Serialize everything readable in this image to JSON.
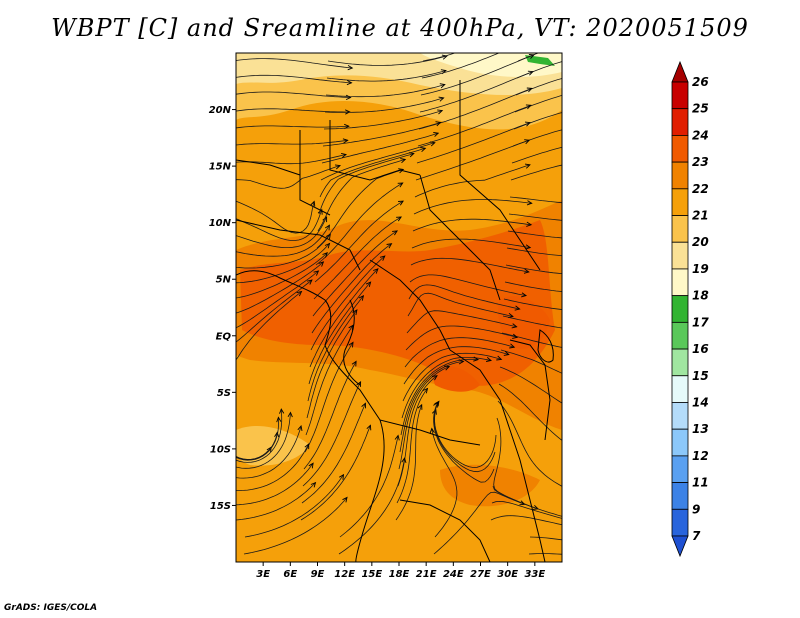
{
  "title": "WBPT [C] and Sreamline at 400hPa, VT: 2020051509",
  "credit": "GrADS: IGES/COLA",
  "map": {
    "lon_range": [
      0,
      36
    ],
    "lat_range": [
      -20,
      25
    ],
    "lon_ticks": [
      {
        "value": 3,
        "label": "3E"
      },
      {
        "value": 6,
        "label": "6E"
      },
      {
        "value": 9,
        "label": "9E"
      },
      {
        "value": 12,
        "label": "12E"
      },
      {
        "value": 15,
        "label": "15E"
      },
      {
        "value": 18,
        "label": "18E"
      },
      {
        "value": 21,
        "label": "21E"
      },
      {
        "value": 24,
        "label": "24E"
      },
      {
        "value": 27,
        "label": "27E"
      },
      {
        "value": 30,
        "label": "30E"
      },
      {
        "value": 33,
        "label": "33E"
      }
    ],
    "lat_ticks": [
      {
        "value": 20,
        "label": "20N"
      },
      {
        "value": 15,
        "label": "15N"
      },
      {
        "value": 10,
        "label": "10N"
      },
      {
        "value": 5,
        "label": "5N"
      },
      {
        "value": 0,
        "label": "EQ"
      },
      {
        "value": -5,
        "label": "5S"
      },
      {
        "value": -10,
        "label": "10S"
      },
      {
        "value": -15,
        "label": "15S"
      }
    ]
  },
  "colorbar": {
    "levels": [
      "26",
      "25",
      "24",
      "23",
      "22",
      "21",
      "20",
      "19",
      "18",
      "17",
      "16",
      "15",
      "14",
      "13",
      "12",
      "11",
      "9",
      "7"
    ],
    "colors": [
      "#a50000",
      "#c80000",
      "#e11e00",
      "#f05a00",
      "#f08200",
      "#f5a00a",
      "#fac34b",
      "#fae196",
      "#fff8c8",
      "#32b432",
      "#5ac85a",
      "#a0e6a0",
      "#e6fafa",
      "#b4dcfa",
      "#8cc8fa",
      "#5aa0f0",
      "#3c82e6",
      "#2864dc",
      "#1e50d2"
    ]
  }
}
